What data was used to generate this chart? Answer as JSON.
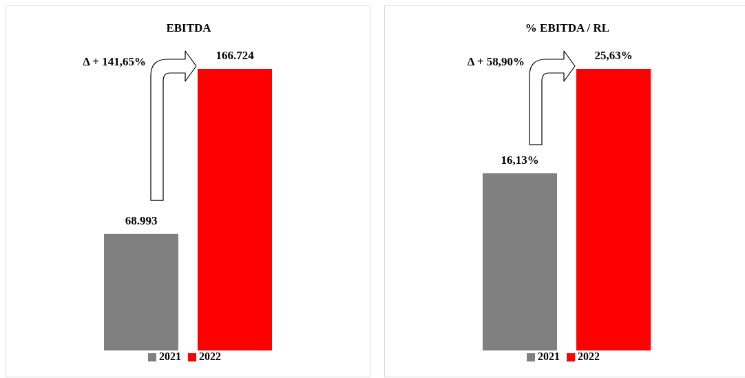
{
  "chart_data": [
    {
      "type": "bar",
      "title": "EBITDA",
      "categories": [
        null
      ],
      "series": [
        {
          "name": "2021",
          "color": "#808080",
          "values": [
            68993
          ],
          "value_labels": [
            "68.993"
          ]
        },
        {
          "name": "2022",
          "color": "#ff0000",
          "values": [
            166724
          ],
          "value_labels": [
            "166.724"
          ]
        }
      ],
      "annotations": [
        "Δ + 141,65%"
      ],
      "legend": "bottom",
      "grid": false,
      "tick_labels": false
    },
    {
      "type": "bar",
      "title": "% EBITDA / RL",
      "categories": [
        null
      ],
      "series": [
        {
          "name": "2021",
          "color": "#808080",
          "values": [
            16.13
          ],
          "value_labels": [
            "16,13%"
          ]
        },
        {
          "name": "2022",
          "color": "#ff0000",
          "values": [
            25.63
          ],
          "value_labels": [
            "25,63%"
          ]
        }
      ],
      "annotations": [
        "Δ + 58,90%"
      ],
      "legend": "bottom",
      "grid": false,
      "tick_labels": false
    }
  ]
}
